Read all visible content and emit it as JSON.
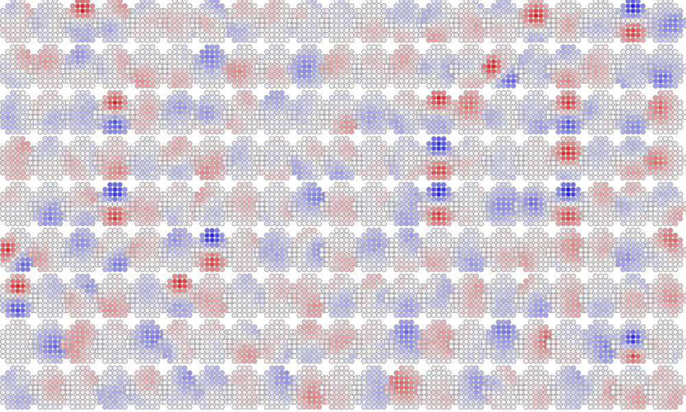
{
  "grid": {
    "rows": 9,
    "cols": 21
  },
  "colors": {
    "negative": "#1a1aff",
    "neutral": "#f4f4f6",
    "positive": "#ee1111",
    "cell_stroke": "#a6a6a6",
    "background": "#ffffff"
  },
  "strong_maps": [
    {
      "row": 0,
      "col": 2,
      "pattern": "posTop"
    },
    {
      "row": 0,
      "col": 16,
      "pattern": "posCenter"
    },
    {
      "row": 0,
      "col": 19,
      "pattern": "negTopPosBottom"
    },
    {
      "row": 1,
      "col": 15,
      "pattern": "posLeft"
    },
    {
      "row": 2,
      "col": 3,
      "pattern": "posTopNegBottom"
    },
    {
      "row": 2,
      "col": 13,
      "pattern": "posTop"
    },
    {
      "row": 2,
      "col": 17,
      "pattern": "posTopNegBottom"
    },
    {
      "row": 3,
      "col": 13,
      "pattern": "negTopPosBottom"
    },
    {
      "row": 3,
      "col": 17,
      "pattern": "posCenter"
    },
    {
      "row": 4,
      "col": 3,
      "pattern": "negTopPosBottom"
    },
    {
      "row": 4,
      "col": 13,
      "pattern": "negTopPosBottom"
    },
    {
      "row": 4,
      "col": 17,
      "pattern": "negTopPosBottom"
    },
    {
      "row": 5,
      "col": 0,
      "pattern": "posLeft"
    },
    {
      "row": 5,
      "col": 6,
      "pattern": "negTopPosBottom"
    },
    {
      "row": 6,
      "col": 0,
      "pattern": "posTopNegBottom"
    },
    {
      "row": 6,
      "col": 5,
      "pattern": "posTop"
    },
    {
      "row": 7,
      "col": 19,
      "pattern": "negCenterPosBottom"
    }
  ]
}
